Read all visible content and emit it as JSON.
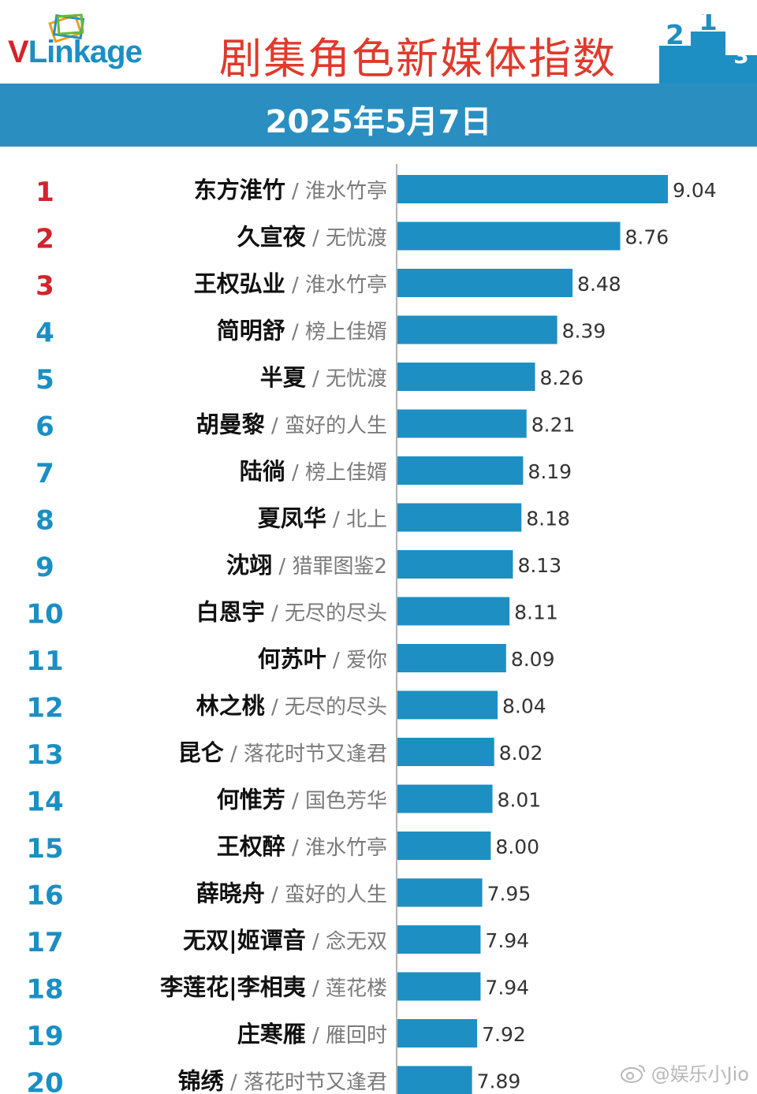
{
  "header": {
    "logo_text_v": "V",
    "logo_text_rest": "Linkage",
    "title": "剧集角色新媒体指数",
    "date": "2025年5月7日"
  },
  "watermark": "@娱乐小Jio",
  "colors": {
    "bar": "#1e8fc2",
    "title": "#e03a2c",
    "rank_top3": "#d4242b",
    "rank_other": "#1b8fc4",
    "date_bar": "#2a8fc0"
  },
  "chart_data": {
    "type": "bar",
    "orientation": "horizontal",
    "title": "剧集角色新媒体指数",
    "subtitle": "2025年5月7日",
    "separator": " / ",
    "rows": [
      {
        "rank": "1",
        "character": "东方淮竹",
        "drama": "淮水竹亭",
        "value": 9.04,
        "label": "9.04"
      },
      {
        "rank": "2",
        "character": "久宣夜",
        "drama": "无忧渡",
        "value": 8.76,
        "label": "8.76"
      },
      {
        "rank": "3",
        "character": "王权弘业",
        "drama": "淮水竹亭",
        "value": 8.48,
        "label": "8.48"
      },
      {
        "rank": "4",
        "character": "简明舒",
        "drama": "榜上佳婿",
        "value": 8.39,
        "label": "8.39"
      },
      {
        "rank": "5",
        "character": "半夏",
        "drama": "无忧渡",
        "value": 8.26,
        "label": "8.26"
      },
      {
        "rank": "6",
        "character": "胡曼黎",
        "drama": "蛮好的人生",
        "value": 8.21,
        "label": "8.21"
      },
      {
        "rank": "7",
        "character": "陆徜",
        "drama": "榜上佳婿",
        "value": 8.19,
        "label": "8.19"
      },
      {
        "rank": "8",
        "character": "夏凤华",
        "drama": "北上",
        "value": 8.18,
        "label": "8.18"
      },
      {
        "rank": "9",
        "character": "沈翊",
        "drama": "猎罪图鉴2",
        "value": 8.13,
        "label": "8.13"
      },
      {
        "rank": "10",
        "character": "白恩宇",
        "drama": "无尽的尽头",
        "value": 8.11,
        "label": "8.11"
      },
      {
        "rank": "11",
        "character": "何苏叶",
        "drama": "爱你",
        "value": 8.09,
        "label": "8.09"
      },
      {
        "rank": "12",
        "character": "林之桃",
        "drama": "无尽的尽头",
        "value": 8.04,
        "label": "8.04"
      },
      {
        "rank": "13",
        "character": "昆仑",
        "drama": "落花时节又逢君",
        "value": 8.02,
        "label": "8.02"
      },
      {
        "rank": "14",
        "character": "何惟芳",
        "drama": "国色芳华",
        "value": 8.01,
        "label": "8.01"
      },
      {
        "rank": "15",
        "character": "王权醉",
        "drama": "淮水竹亭",
        "value": 8.0,
        "label": "8.00"
      },
      {
        "rank": "16",
        "character": "薛晓舟",
        "drama": "蛮好的人生",
        "value": 7.95,
        "label": "7.95"
      },
      {
        "rank": "17",
        "character": "无双|姬谭音",
        "drama": "念无双",
        "value": 7.94,
        "label": "7.94"
      },
      {
        "rank": "18",
        "character": "李莲花|李相夷",
        "drama": "莲花楼",
        "value": 7.94,
        "label": "7.94"
      },
      {
        "rank": "19",
        "character": "庄寒雁",
        "drama": "雁回时",
        "value": 7.92,
        "label": "7.92"
      },
      {
        "rank": "20",
        "character": "锦绣",
        "drama": "落花时节又逢君",
        "value": 7.89,
        "label": "7.89"
      }
    ]
  }
}
